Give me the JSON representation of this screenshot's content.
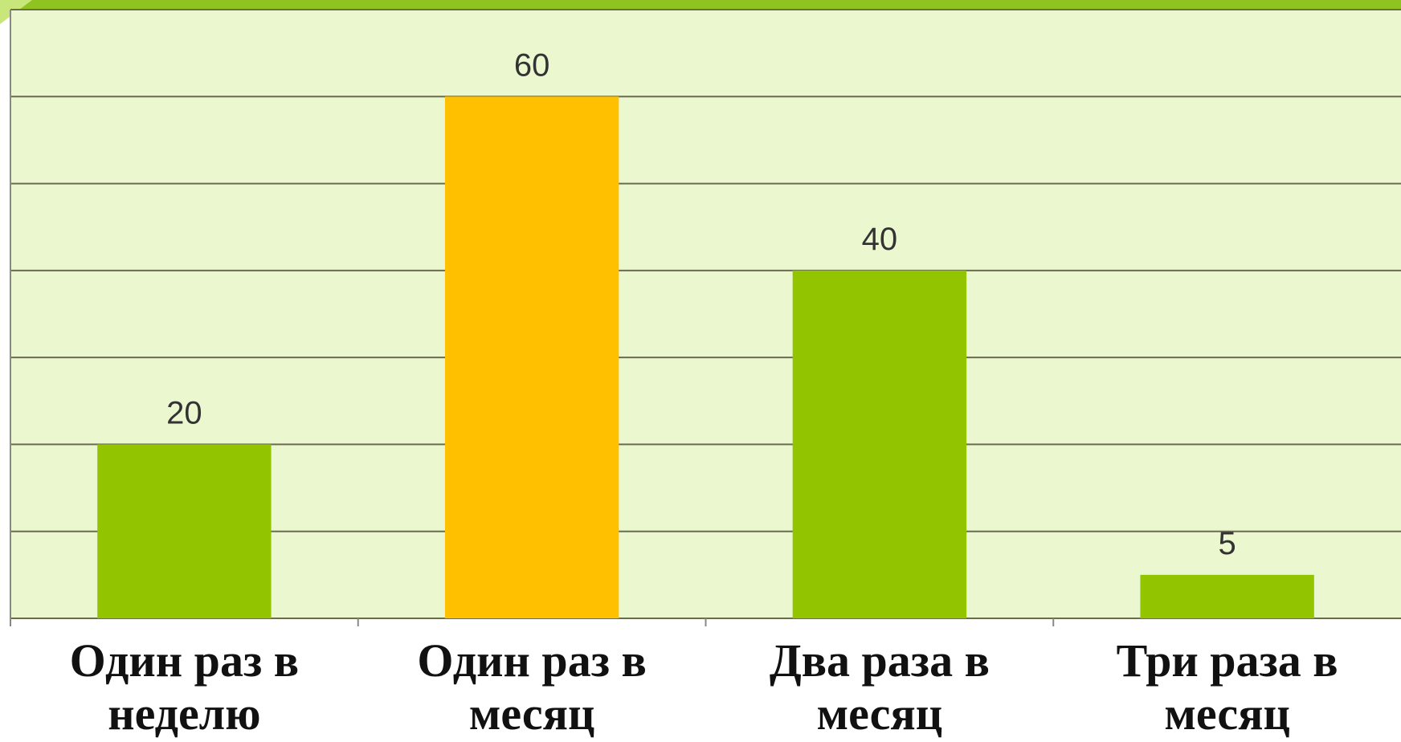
{
  "chart_data": {
    "type": "bar",
    "categories": [
      "Один раз в неделю",
      "Один раз в месяц",
      "Два раза в месяц",
      "Три раза в месяц"
    ],
    "values": [
      20,
      60,
      40,
      5
    ],
    "colors": [
      "#92c500",
      "#ffc000",
      "#92c500",
      "#92c500"
    ],
    "ylim": [
      0,
      70
    ],
    "yticks": [
      0,
      10,
      20,
      30,
      40,
      50,
      60,
      70
    ],
    "grid": true
  }
}
